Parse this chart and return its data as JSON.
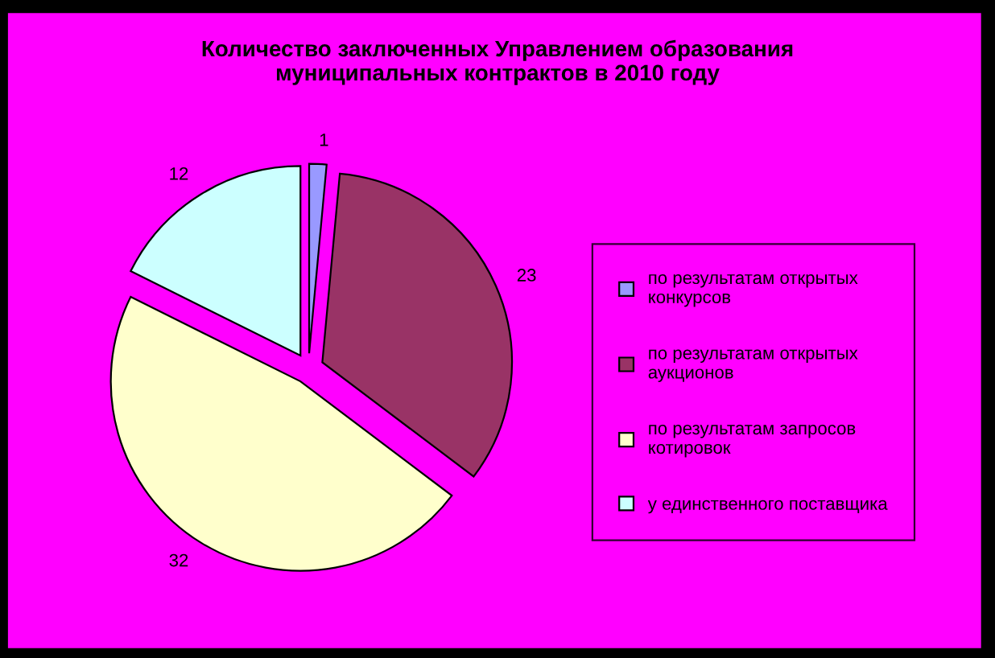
{
  "chart_data": {
    "type": "pie",
    "title": "Количество заключенных Управлением образования\nмуниципальных контрактов в 2010 году",
    "categories": [
      "по результатам открытых\nконкурсов",
      "по результатам открытых\nаукционов",
      "по результатам запросов\nкотировок",
      "у единственного поставщика"
    ],
    "values": [
      1,
      23,
      32,
      12
    ],
    "colors": [
      "#9999ff",
      "#993366",
      "#ffffcc",
      "#ccffff"
    ],
    "data_labels": true,
    "legend": "right"
  }
}
